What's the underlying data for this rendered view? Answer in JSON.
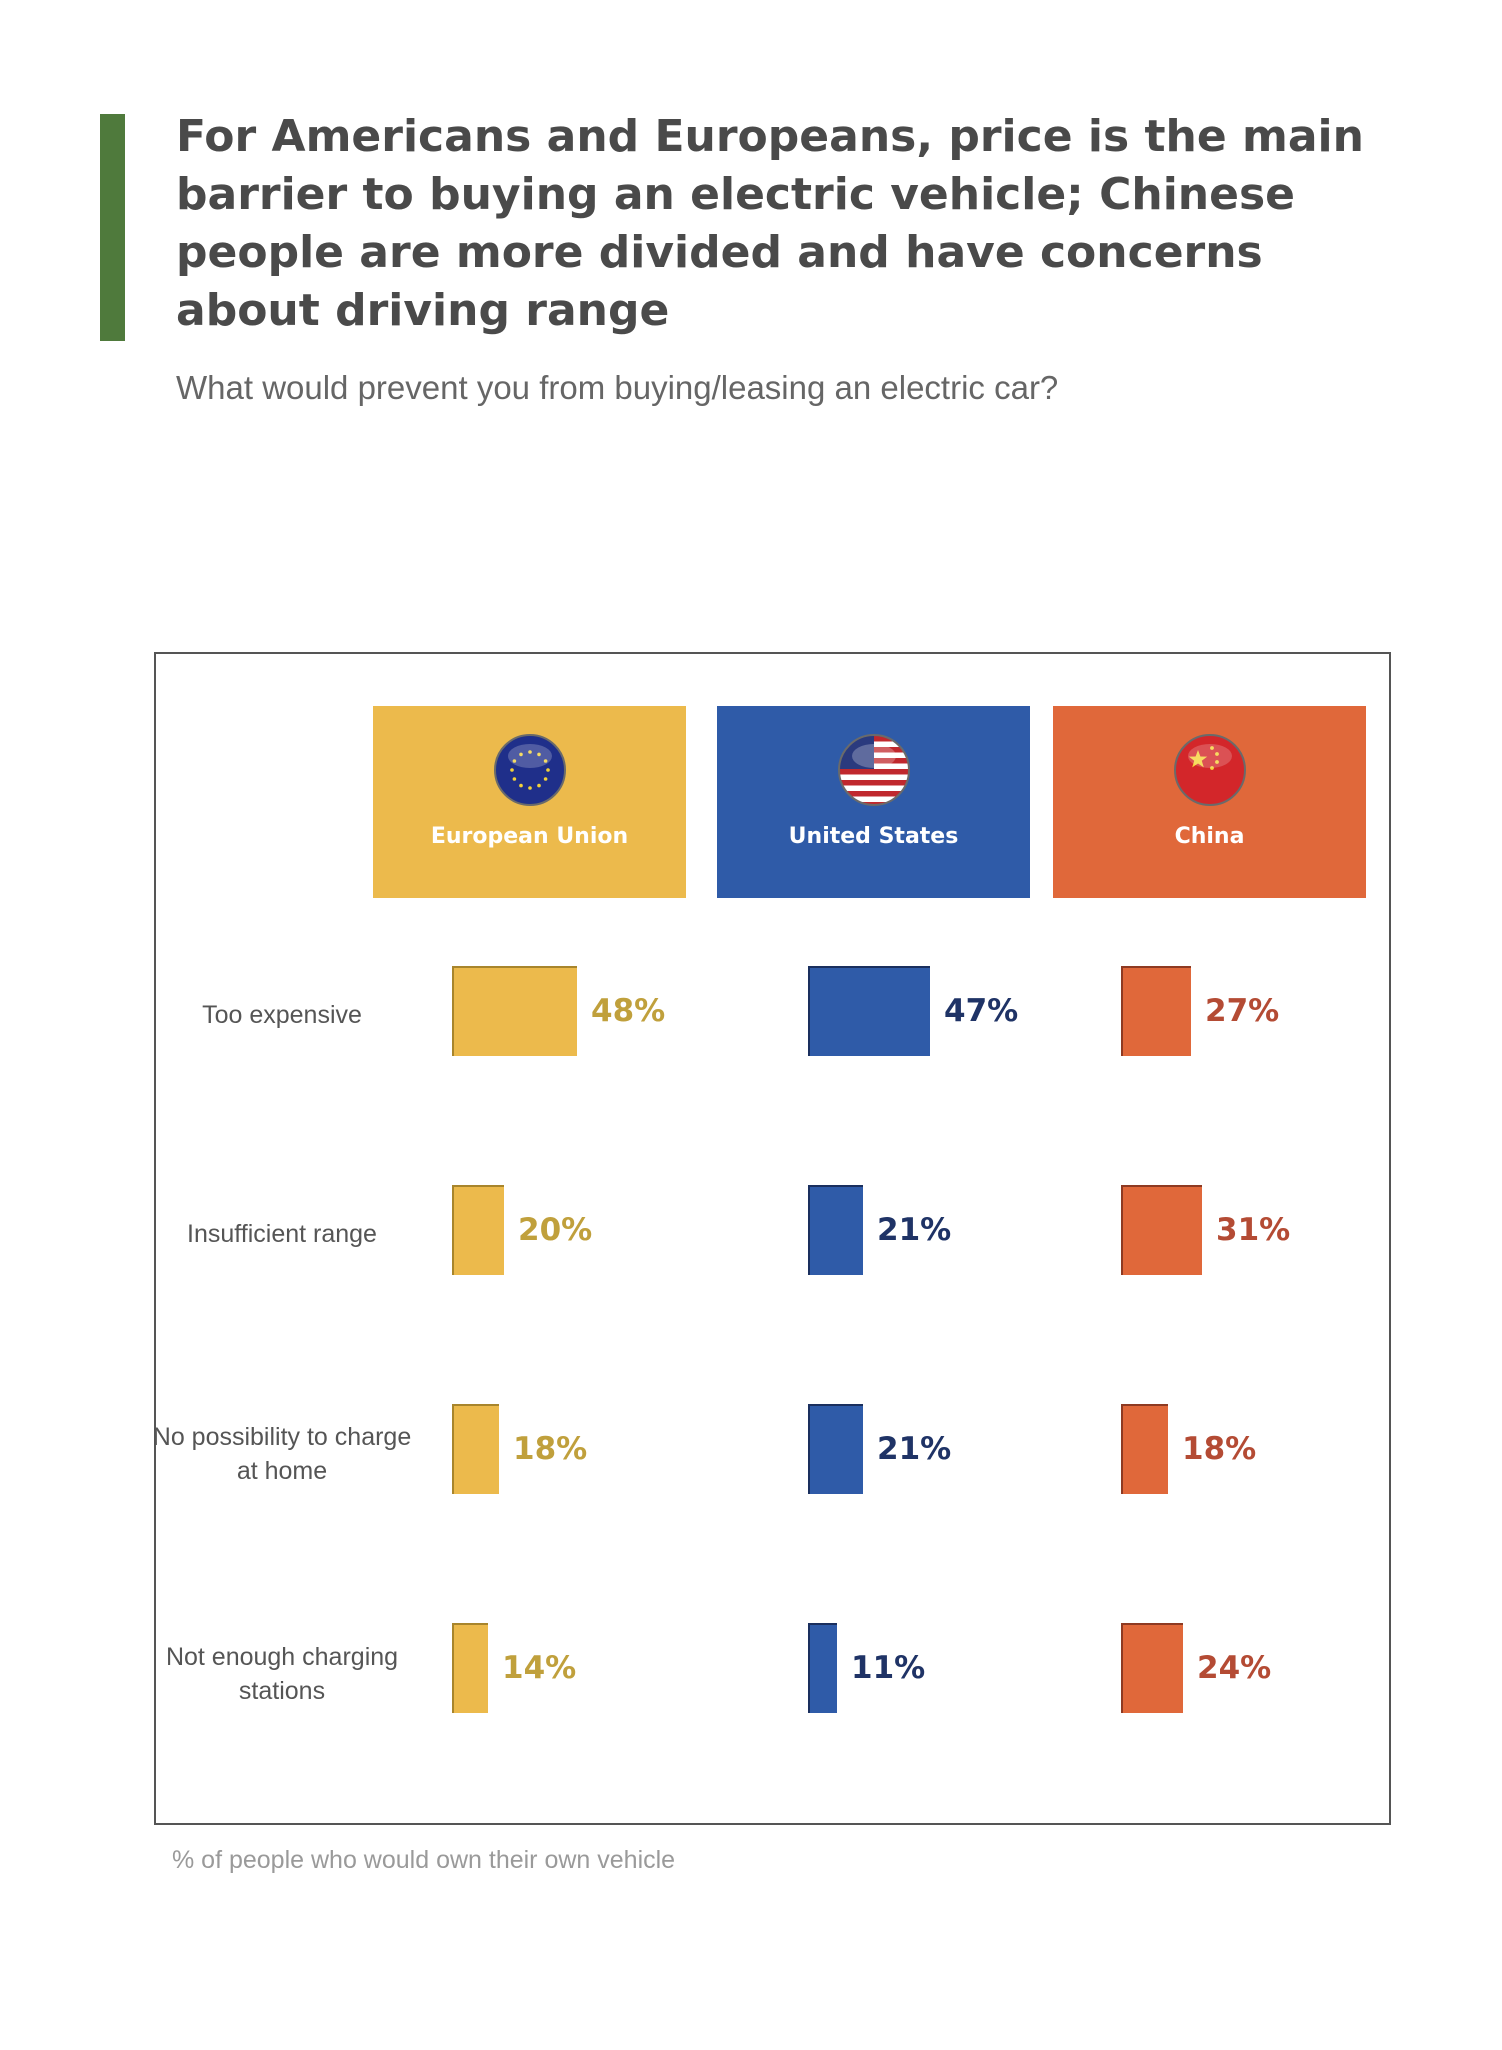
{
  "title": "For Americans and Europeans, price is the main barrier to buying an electric vehicle; Chinese people are more divided and have concerns about driving range",
  "subtitle": "What would prevent you from buying/leasing an electric car?",
  "footnote": "% of people who would own their own vehicle",
  "colors": {
    "accent_bar": "#4f7a3c",
    "eu": "#ecba4c",
    "eu_text": "#c0a03c",
    "us": "#2f5ba8",
    "us_text": "#1f3366",
    "cn": "#e0683a",
    "cn_text": "#b44b34"
  },
  "regions": [
    {
      "name": "European Union",
      "icon": "eu-flag-icon"
    },
    {
      "name": "United States",
      "icon": "us-flag-icon"
    },
    {
      "name": "China",
      "icon": "china-flag-icon"
    }
  ],
  "chart_data": {
    "type": "bar",
    "title": "What would prevent you from buying/leasing an electric car?",
    "unit": "%",
    "categories": [
      "Too expensive",
      "Insufficient range",
      "No possibility to charge at home",
      "Not enough charging stations"
    ],
    "series": [
      {
        "name": "European Union",
        "values": [
          48,
          20,
          18,
          14
        ],
        "labels": [
          "48%",
          "20%",
          "18%",
          "14%"
        ]
      },
      {
        "name": "United States",
        "values": [
          47,
          21,
          21,
          11
        ],
        "labels": [
          "47%",
          "21%",
          "21%",
          "11%"
        ]
      },
      {
        "name": "China",
        "values": [
          27,
          31,
          18,
          24
        ],
        "labels": [
          "27%",
          "31%",
          "18%",
          "24%"
        ]
      }
    ],
    "note": "% of people who would own their own vehicle"
  }
}
